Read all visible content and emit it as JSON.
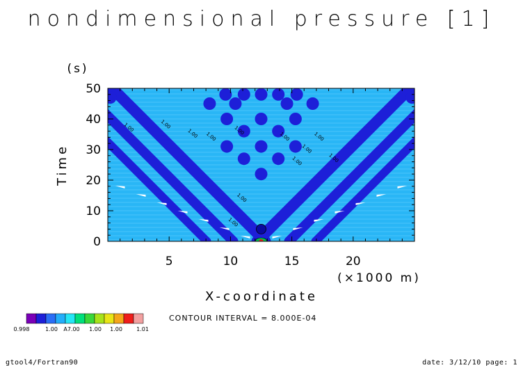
{
  "chart_data": {
    "type": "heatmap",
    "title": "nondimensional pressure [1]",
    "xlabel": "X-coordinate",
    "xunit": "(×1000 m)",
    "ylabel": "Time",
    "yunit": "(s)",
    "xlim": [
      0,
      25
    ],
    "ylim": [
      0,
      50
    ],
    "xticks": [
      "5",
      "10",
      "15",
      "20"
    ],
    "xtick_values": [
      5,
      10,
      15,
      20
    ],
    "yticks": [
      "0",
      "10",
      "20",
      "30",
      "40",
      "50"
    ],
    "ytick_values": [
      0,
      10,
      20,
      30,
      40,
      50
    ],
    "source_x": 12.5,
    "contour_labels": [
      {
        "text": "1.00",
        "x": 1.3,
        "y": 38
      },
      {
        "text": "1.00",
        "x": 4.3,
        "y": 39
      },
      {
        "text": "1.00",
        "x": 6.5,
        "y": 36
      },
      {
        "text": "1.00",
        "x": 8.0,
        "y": 35
      },
      {
        "text": "1.00",
        "x": 10.3,
        "y": 37
      },
      {
        "text": "1.00",
        "x": 14.0,
        "y": 35
      },
      {
        "text": "1.00",
        "x": 15.8,
        "y": 31
      },
      {
        "text": "1.00",
        "x": 16.8,
        "y": 35
      },
      {
        "text": "1.00",
        "x": 15.0,
        "y": 27
      },
      {
        "text": "1.00",
        "x": 18.0,
        "y": 28
      },
      {
        "text": "1.00",
        "x": 10.5,
        "y": 15
      },
      {
        "text": "1.00",
        "x": 9.8,
        "y": 7
      }
    ],
    "colorbar": {
      "colors": [
        "#7a00b8",
        "#1d1fd8",
        "#2a6ef6",
        "#23aefa",
        "#25e6f5",
        "#00e07c",
        "#3ad83a",
        "#a8e31a",
        "#e9e517",
        "#f5a61a",
        "#ef1d1b",
        "#f2a0a0"
      ],
      "labels": [
        "0.998",
        "1.00",
        "A7.00",
        "1.00",
        "1.00",
        "1.01"
      ]
    },
    "contour_interval": "CONTOUR INTERVAL = 8.000E-04"
  },
  "footer": {
    "left": "gtool4/Fortran90",
    "right": "date: 3/12/10 page: 1"
  }
}
